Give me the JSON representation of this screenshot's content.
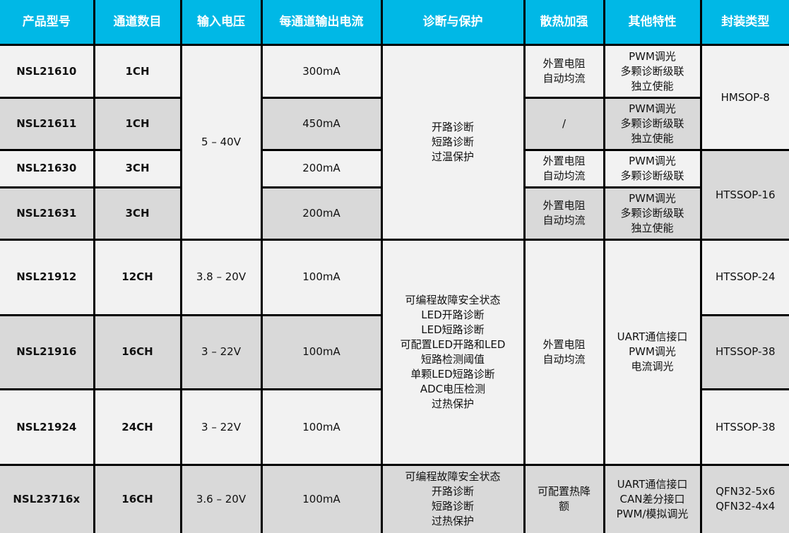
{
  "headers": [
    "产品型号",
    "通道数目",
    "输入电压",
    "每通道输出电流",
    "诊断与保护",
    "散热加强",
    "其他特性",
    "封装类型"
  ],
  "rows": [
    {
      "model": "NSL21610",
      "channels": "1CH",
      "voltage": "5 – 40V",
      "current": "300mA",
      "diagnosis": "开路诊断\n短路诊断\n过温保护",
      "heat": "外置电阻\n自动均流",
      "features": "PWM调光\n多颗诊断级联\n独立使能",
      "package": "HMSOP-8"
    },
    {
      "model": "NSL21611",
      "channels": "1CH",
      "current": "450mA",
      "heat": "/",
      "features": "PWM调光\n多颗诊断级联\n独立使能"
    },
    {
      "model": "NSL21630",
      "channels": "3CH",
      "current": "200mA",
      "heat": "外置电阻\n自动均流",
      "features": "PWM调光\n多颗诊断级联",
      "package": "HTSSOP-16"
    },
    {
      "model": "NSL21631",
      "channels": "3CH",
      "current": "200mA",
      "heat": "外置电阻\n自动均流",
      "features": "PWM调光\n多颗诊断级联\n独立使能"
    },
    {
      "model": "NSL21912",
      "channels": "12CH",
      "voltage": "3.8 – 20V",
      "current": "100mA",
      "diagnosis": "可编程故障安全状态\nLED开路诊断\nLED短路诊断\n可配置LED开路和LED\n短路检测阈值\n单颗LED短路诊断\nADC电压检测\n过热保护",
      "heat": "外置电阻\n自动均流",
      "features": "UART通信接口\nPWM调光\n电流调光",
      "package": "HTSSOP-24"
    },
    {
      "model": "NSL21916",
      "channels": "16CH",
      "voltage": "3 – 22V",
      "current": "100mA",
      "package": "HTSSOP-38"
    },
    {
      "model": "NSL21924",
      "channels": "24CH",
      "voltage": "3 – 22V",
      "current": "100mA",
      "package": "HTSSOP-38"
    },
    {
      "model": "NSL23716x",
      "channels": "16CH",
      "voltage": "3.6 – 20V",
      "current": "100mA",
      "diagnosis": "可编程故障安全状态\n开路诊断\n短路诊断\n过热保护",
      "heat": "可配置热降\n额",
      "features": "UART通信接口\nCAN差分接口\nPWM/模拟调光",
      "package": "QFN32-5x6\nQFN32-4x4"
    }
  ],
  "colors": {
    "header_bg": "#00b8e6",
    "row_light": "#f2f2f2",
    "row_gray": "#d9d9d9"
  }
}
